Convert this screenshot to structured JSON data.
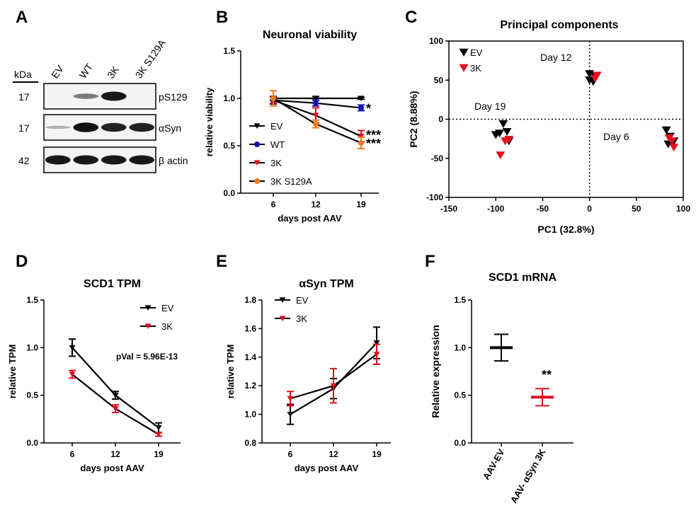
{
  "colors": {
    "ev": "#000000",
    "wt": "#1010b0",
    "k3": "#e01020",
    "s129a": "#f07820"
  },
  "panel_labels": {
    "a": "A",
    "b": "B",
    "c": "C",
    "d": "D",
    "e": "E",
    "f": "F"
  },
  "western_blot": {
    "kda_header": "kDa",
    "lanes": [
      "EV",
      "WT",
      "3K",
      "3K S129A"
    ],
    "rows": [
      {
        "kda": "17",
        "label": "pS129",
        "bands": [
          0.0,
          0.35,
          0.9,
          0.0
        ]
      },
      {
        "kda": "17",
        "label": "αSyn",
        "bands": [
          0.05,
          0.95,
          0.85,
          0.85
        ]
      },
      {
        "kda": "42",
        "label": "β actin",
        "bands": [
          0.9,
          0.9,
          0.9,
          0.9
        ]
      }
    ]
  },
  "chart_data": [
    {
      "id": "B",
      "type": "line",
      "title": "Neuronal viability",
      "xlabel": "days post AAV",
      "ylabel": "relative viability",
      "categories": [
        "6",
        "12",
        "19"
      ],
      "ylim": [
        0,
        1.5
      ],
      "yticks": [
        "0.0",
        "0.5",
        "1.0",
        "1.5"
      ],
      "series": [
        {
          "name": "EV",
          "color": "#000000",
          "marker": "tri-down",
          "values": [
            1.0,
            1.0,
            1.0
          ],
          "err": [
            0.02,
            0.02,
            0.01
          ]
        },
        {
          "name": "WT",
          "color": "#1010b0",
          "marker": "circle",
          "values": [
            0.98,
            0.95,
            0.9
          ],
          "err": [
            0.04,
            0.03,
            0.03
          ]
        },
        {
          "name": "3K",
          "color": "#e01020",
          "marker": "tri-down",
          "values": [
            0.98,
            0.82,
            0.6
          ],
          "err": [
            0.03,
            0.08,
            0.06
          ]
        },
        {
          "name": "3K S129A",
          "color": "#f07820",
          "marker": "circle",
          "values": [
            1.0,
            0.73,
            0.53
          ],
          "err": [
            0.08,
            0.04,
            0.06
          ]
        }
      ],
      "annotations": [
        "*",
        "***",
        "***"
      ]
    },
    {
      "id": "C",
      "type": "scatter",
      "title": "Principal components",
      "xlabel": "PC1 (32.8%)",
      "ylabel": "PC2 (8.88%)",
      "xlim": [
        -150,
        100
      ],
      "ylim": [
        -100,
        100
      ],
      "xticks": [
        "-150",
        "-100",
        "-50",
        "0",
        "50",
        "100"
      ],
      "yticks": [
        "-100",
        "-50",
        "0",
        "50",
        "100"
      ],
      "group_labels": [
        "Day 19",
        "Day 12",
        "Day 6"
      ],
      "series": [
        {
          "name": "EV",
          "color": "#000000",
          "points": [
            [
              -92,
              -6
            ],
            [
              -100,
              -20
            ],
            [
              -96,
              -18
            ],
            [
              -88,
              -16
            ],
            [
              -86,
              -28
            ],
            [
              0,
              58
            ],
            [
              0,
              50
            ],
            [
              4,
              48
            ],
            [
              6,
              55
            ],
            [
              82,
              -14
            ],
            [
              86,
              -22
            ],
            [
              84,
              -32
            ],
            [
              90,
              -28
            ]
          ]
        },
        {
          "name": "3K",
          "color": "#e01020",
          "points": [
            [
              -95,
              -46
            ],
            [
              -90,
              -28
            ],
            [
              -86,
              -26
            ],
            [
              6,
              52
            ],
            [
              8,
              56
            ],
            [
              85,
              -24
            ],
            [
              88,
              -28
            ],
            [
              90,
              -36
            ]
          ]
        }
      ]
    },
    {
      "id": "D",
      "type": "line",
      "title": "SCD1 TPM",
      "xlabel": "days post AAV",
      "ylabel": "relative TPM",
      "categories": [
        "6",
        "12",
        "19"
      ],
      "ylim": [
        0,
        1.5
      ],
      "yticks": [
        "0.0",
        "0.5",
        "1.0",
        "1.5"
      ],
      "annotation": "pVal = 5.96E-13",
      "series": [
        {
          "name": "EV",
          "color": "#000000",
          "values": [
            1.0,
            0.5,
            0.16
          ],
          "err": [
            0.09,
            0.04,
            0.05
          ]
        },
        {
          "name": "3K",
          "color": "#e01020",
          "values": [
            0.72,
            0.36,
            0.09
          ],
          "err": [
            0.04,
            0.04,
            0.02
          ]
        }
      ]
    },
    {
      "id": "E",
      "type": "line",
      "title": "αSyn TPM",
      "xlabel": "days post AAV",
      "ylabel": "relative TPM",
      "categories": [
        "6",
        "12",
        "19"
      ],
      "ylim": [
        0.8,
        1.8
      ],
      "yticks": [
        "0.8",
        "1.0",
        "1.2",
        "1.4",
        "1.6",
        "1.8"
      ],
      "series": [
        {
          "name": "EV",
          "color": "#000000",
          "values": [
            1.0,
            1.18,
            1.5
          ],
          "err": [
            0.07,
            0.07,
            0.11
          ]
        },
        {
          "name": "3K",
          "color": "#e01020",
          "values": [
            1.11,
            1.2,
            1.42
          ],
          "err": [
            0.05,
            0.12,
            0.07
          ]
        }
      ]
    },
    {
      "id": "F",
      "type": "scatter",
      "title": "SCD1 mRNA",
      "ylabel": "Relative expression",
      "categories": [
        "AAV-EV",
        "AAV- αSyn 3K"
      ],
      "ylim": [
        0,
        1.5
      ],
      "yticks": [
        "0.0",
        "0.5",
        "1.0",
        "1.5"
      ],
      "series": [
        {
          "name": "AAV-EV",
          "color": "#000000",
          "mean": 1.0,
          "err": 0.14
        },
        {
          "name": "AAV- αSyn 3K",
          "color": "#e01020",
          "mean": 0.48,
          "err": 0.09
        }
      ],
      "annotation": "**"
    }
  ]
}
